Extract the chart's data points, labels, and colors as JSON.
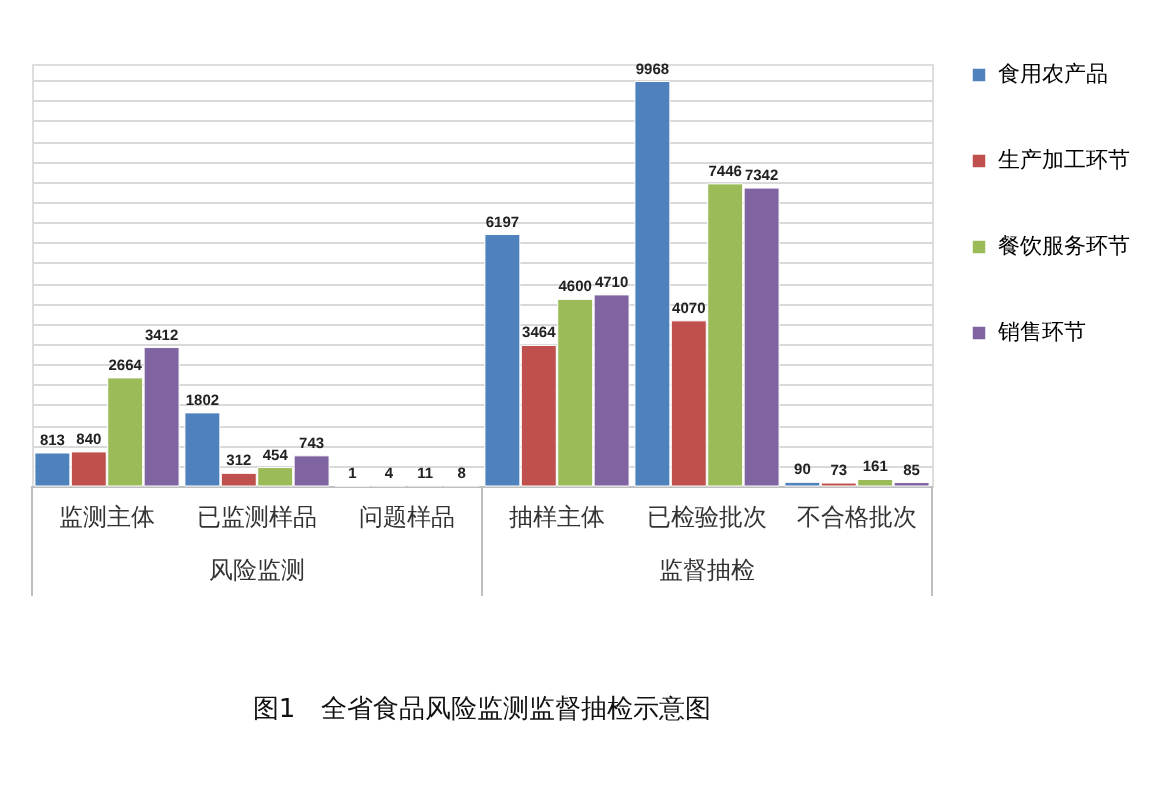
{
  "chart_data": {
    "type": "bar",
    "title": "图1　全省食品风险监测监督抽检示意图",
    "categories": [
      "监测主体",
      "已监测样品",
      "问题样品",
      "抽样主体",
      "已检验批次",
      "不合格批次"
    ],
    "series": [
      {
        "name": "食用农产品",
        "color": "#4f81bd",
        "values": [
          813,
          1802,
          1,
          6197,
          9968,
          90
        ]
      },
      {
        "name": "生产加工环节",
        "color": "#c0504d",
        "values": [
          840,
          312,
          4,
          3464,
          4070,
          73
        ]
      },
      {
        "name": "餐饮服务环节",
        "color": "#9bbb59",
        "values": [
          2664,
          454,
          11,
          4600,
          7446,
          161
        ]
      },
      {
        "name": "销售环节",
        "color": "#8064a2",
        "values": [
          3412,
          743,
          8,
          4710,
          7342,
          85
        ]
      }
    ],
    "annotations": [
      "风险监测",
      "监督抽检"
    ],
    "ylim": [
      0,
      10400
    ],
    "grid": "y",
    "tick_labels": "x",
    "data_labels": true,
    "legend": "right"
  }
}
